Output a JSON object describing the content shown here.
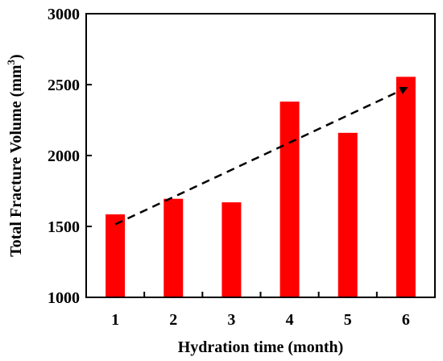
{
  "chart_data": {
    "type": "bar",
    "title": "",
    "xlabel": "Hydration time (month)",
    "ylabel": "Total Fracture Volume (mm",
    "ylabel_sup": "3",
    "ylabel_close": ")",
    "categories": [
      "1",
      "2",
      "3",
      "4",
      "5",
      "6"
    ],
    "values": [
      1585,
      1695,
      1670,
      2380,
      2160,
      2555
    ],
    "ylim": [
      1000,
      3000
    ],
    "yticks": [
      1000,
      1500,
      2000,
      2500,
      3000
    ],
    "grid": false,
    "legend": "none",
    "bar_color": "#ff0000",
    "trend": {
      "style": "dashed-arrow",
      "from": {
        "x": "1",
        "y": 1515
      },
      "to": {
        "x": "6",
        "y": 2475
      },
      "color": "#000000"
    }
  }
}
